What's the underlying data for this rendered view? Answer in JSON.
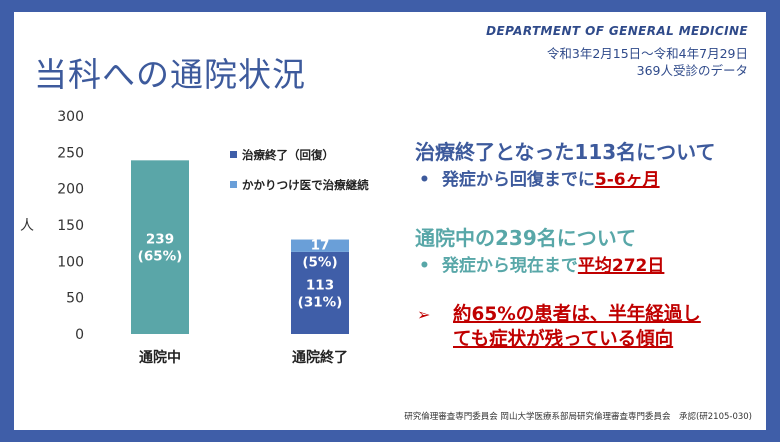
{
  "slide": {
    "title": "当科への通院状況",
    "department": "DEPARTMENT OF GENERAL MEDICINE",
    "period": "令和3年2月15日～令和4年7月29日",
    "count": "369人受診のデータ",
    "footer": "研究倫理審査専門委員会 岡山大学医療系部局研究倫理審査専門委員会　承認(研2105-030)"
  },
  "chart_data": {
    "type": "bar",
    "stacked": true,
    "categories": [
      "通院中",
      "通院終了"
    ],
    "series": [
      {
        "name": "治療終了（回復）",
        "values": [
          null,
          113
        ],
        "labels": [
          "",
          "113\n(31%)"
        ],
        "color": "#3f5ea8"
      },
      {
        "name": "かかりつけ医で治療継続",
        "values": [
          239,
          17
        ],
        "labels": [
          "239\n(65%)",
          "17\n(5%)"
        ],
        "color": "#5aa6a8",
        "colors": [
          "#5aa6a8",
          "#6a9fd8"
        ]
      }
    ],
    "ylabel": "人",
    "ylim": [
      0,
      300
    ],
    "yticks": [
      0,
      50,
      100,
      150,
      200,
      250,
      300
    ],
    "grid": false,
    "legend": "top-right"
  },
  "text": {
    "block1_head": "治療終了となった113名について",
    "block1_bullet": "発症から回復までに",
    "block1_highlight": "5-6ヶ月",
    "block2_head": "通院中の239名について",
    "block2_bullet": "発症から現在まで",
    "block2_highlight": "平均272日",
    "conclusion_line1": "約65%の患者は、半年経過し",
    "conclusion_line2": "ても症状が残っている傾向"
  }
}
